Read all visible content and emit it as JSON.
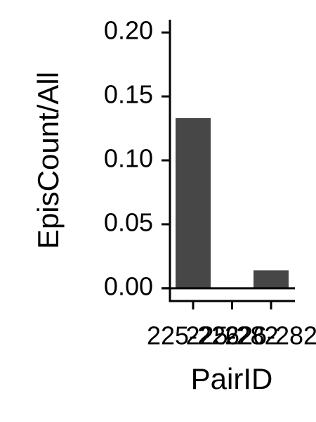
{
  "chart_data": {
    "type": "bar",
    "x_label": "PairID",
    "y_label": "EpisCount/All",
    "categories": [
      "225-226",
      "225-282",
      "226-282"
    ],
    "values": [
      0.133,
      0,
      0.014
    ],
    "color": "#474747",
    "ylim": [
      -0.01,
      0.21
    ],
    "yticks": [
      {
        "value": 0,
        "label": "0.00"
      },
      {
        "value": 0.05,
        "label": "0.05"
      },
      {
        "value": 0.1,
        "label": "0.10"
      },
      {
        "value": 0.15,
        "label": "0.15"
      },
      {
        "value": 0.2,
        "label": "0.20"
      }
    ],
    "zero_line": true
  }
}
